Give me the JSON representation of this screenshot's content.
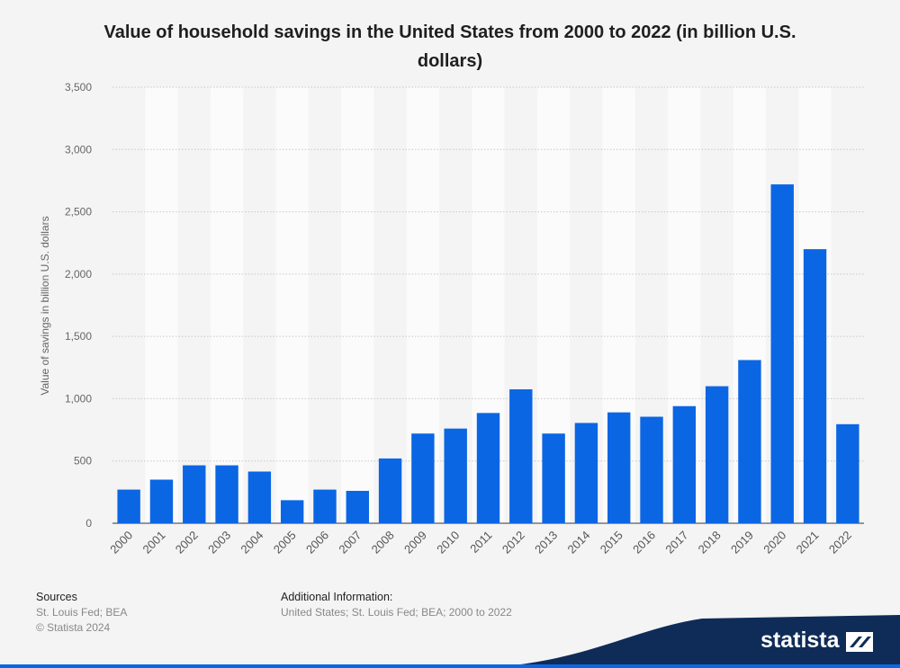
{
  "title": "Value of household savings in the United States from 2000 to 2022 (in billion U.S. dollars)",
  "footer": {
    "sources_heading": "Sources",
    "sources_text": "St. Louis Fed; BEA",
    "copyright": "© Statista 2024",
    "additional_heading": "Additional Information:",
    "additional_text": "United States; St. Louis Fed; BEA; 2000 to 2022"
  },
  "brand": {
    "name": "statista",
    "icon": "statista-logo-icon"
  },
  "colors": {
    "bar": "#0b66e4",
    "band": "#ffffff",
    "background": "#f4f4f4",
    "footer_wave": "#0f2c58"
  },
  "chart_data": {
    "type": "bar",
    "title": "Value of household savings in the United States from 2000 to 2022 (in billion U.S. dollars)",
    "xlabel": "",
    "ylabel": "Value of savings in billion U.S. dollars",
    "categories": [
      "2000",
      "2001",
      "2002",
      "2003",
      "2004",
      "2005",
      "2006",
      "2007",
      "2008",
      "2009",
      "2010",
      "2011",
      "2012",
      "2013",
      "2014",
      "2015",
      "2016",
      "2017",
      "2018",
      "2019",
      "2020",
      "2021",
      "2022"
    ],
    "values": [
      270,
      350,
      465,
      465,
      415,
      185,
      270,
      260,
      520,
      720,
      760,
      885,
      1075,
      720,
      805,
      890,
      855,
      940,
      1100,
      1310,
      2720,
      2200,
      795
    ],
    "ylim": [
      0,
      3500
    ],
    "yticks": [
      0,
      500,
      1000,
      1500,
      2000,
      2500,
      3000,
      3500
    ],
    "ytick_labels": [
      "0",
      "500",
      "1,000",
      "1,500",
      "2,000",
      "2,500",
      "3,000",
      "3,500"
    ],
    "grid": true,
    "legend": "none"
  }
}
